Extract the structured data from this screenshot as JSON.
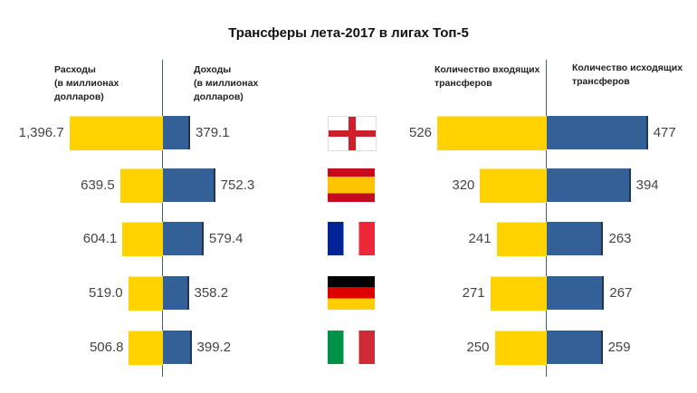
{
  "title": "Трансферы лета-2017 в лигах Топ-5",
  "colors": {
    "expense": "#ffd200",
    "income": "#336096"
  },
  "flags": [
    "england-flag",
    "spain-flag",
    "france-flag",
    "germany-flag",
    "italy-flag"
  ],
  "chart_data": [
    {
      "type": "bar",
      "orientation": "horizontal-diverging",
      "categories": [
        "England",
        "Spain",
        "France",
        "Germany",
        "Italy"
      ],
      "series": [
        {
          "name": "Расходы\n(в миллионах\nдолларов)",
          "values": [
            1396.7,
            639.5,
            604.1,
            519.0,
            506.8
          ],
          "labels": [
            "1,396.7",
            "639.5",
            "604.1",
            "519.0",
            "506.8"
          ],
          "color": "#ffd200"
        },
        {
          "name": "Доходы\n(в миллионах\nдолларов)",
          "values": [
            379.1,
            752.3,
            579.4,
            358.2,
            399.2
          ],
          "labels": [
            "379.1",
            "752.3",
            "579.4",
            "358.2",
            "399.2"
          ],
          "color": "#336096"
        }
      ]
    },
    {
      "type": "bar",
      "orientation": "horizontal-diverging",
      "categories": [
        "England",
        "Spain",
        "France",
        "Germany",
        "Italy"
      ],
      "series": [
        {
          "name": "Количество входящих\nтрансферов",
          "values": [
            526,
            320,
            241,
            271,
            250
          ],
          "labels": [
            "526",
            "320",
            "241",
            "271",
            "250"
          ],
          "color": "#ffd200"
        },
        {
          "name": "Количество исходящих\nтрансферов",
          "values": [
            477,
            394,
            263,
            267,
            259
          ],
          "labels": [
            "477",
            "394",
            "263",
            "267",
            "259"
          ],
          "color": "#336096"
        }
      ]
    }
  ]
}
